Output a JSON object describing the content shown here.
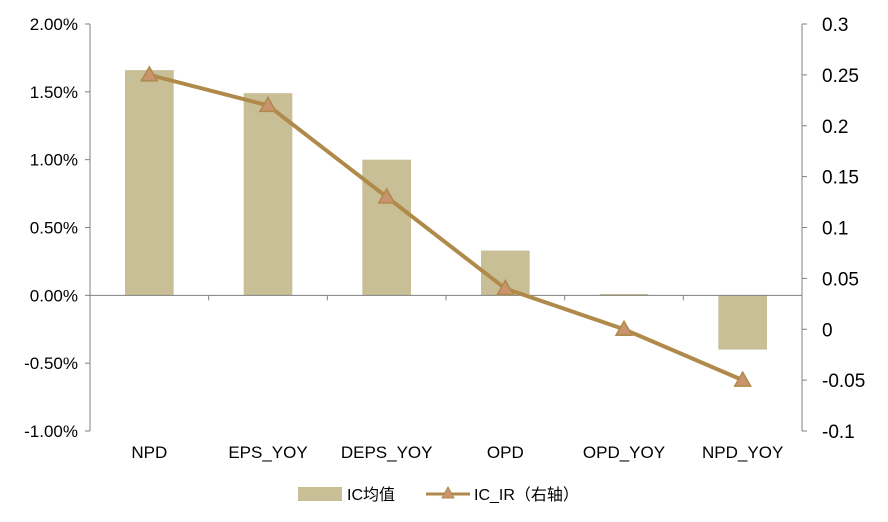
{
  "chart_data": {
    "type": "bar+line",
    "categories": [
      "NPD",
      "EPS_YOY",
      "DEPS_YOY",
      "OPD",
      "OPD_YOY",
      "NPD_YOY"
    ],
    "series": [
      {
        "name": "IC均值",
        "type": "bar",
        "axis": "left",
        "values": [
          0.0166,
          0.0149,
          0.01,
          0.0033,
          0.0001,
          -0.004
        ],
        "color": "#c8bf96"
      },
      {
        "name": "IC_IR（右轴）",
        "type": "line",
        "axis": "right",
        "values": [
          0.25,
          0.22,
          0.13,
          0.04,
          0.0,
          -0.05
        ],
        "color": "#b08a4a",
        "marker": "triangle"
      }
    ],
    "left_axis": {
      "ylim": [
        -0.01,
        0.02
      ],
      "ticks": [
        "2.00%",
        "1.50%",
        "1.00%",
        "0.50%",
        "0.00%",
        "-0.50%",
        "-1.00%"
      ]
    },
    "right_axis": {
      "ylim": [
        -0.1,
        0.3
      ],
      "ticks": [
        "0.3",
        "0.25",
        "0.2",
        "0.15",
        "0.1",
        "0.05",
        "0",
        "-0.05",
        "-0.1"
      ]
    },
    "legend": "bottom",
    "grid": false
  }
}
